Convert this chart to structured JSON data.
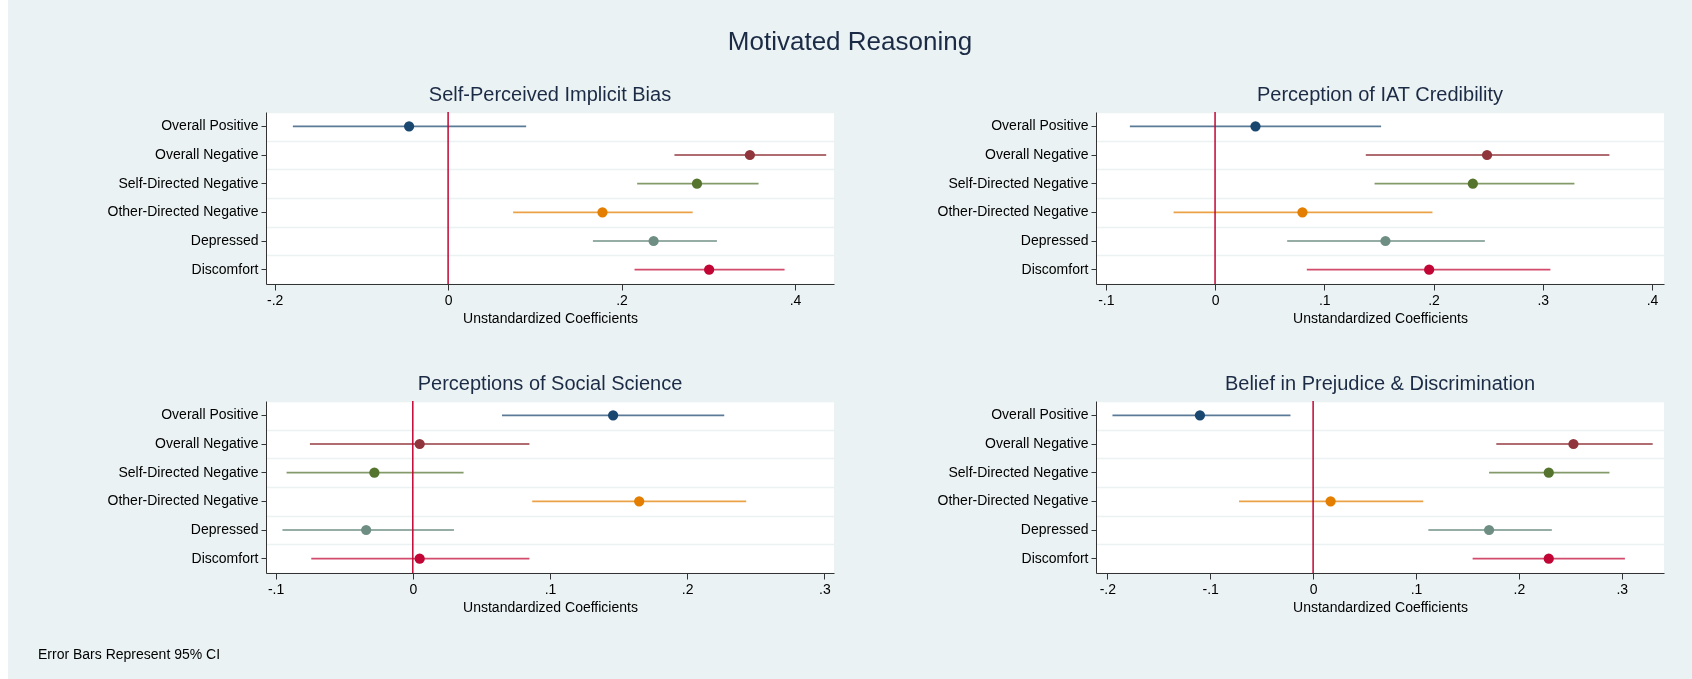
{
  "chart_data": [
    {
      "type": "scatter",
      "orientation": "horizontal",
      "title": "Self-Perceived Implicit Bias",
      "xlabel": "Unstandardized Coefficients",
      "annotations": [
        "Motivated Reasoning"
      ],
      "categories": [
        "Overall Positive",
        "Overall Negative",
        "Self-Directed Negative",
        "Other-Directed Negative",
        "Depressed",
        "Discomfort"
      ],
      "values": [
        -0.045,
        0.348,
        0.287,
        0.178,
        0.237,
        0.301
      ],
      "errors": [
        [
          -0.179,
          0.09
        ],
        [
          0.261,
          0.436
        ],
        [
          0.218,
          0.358
        ],
        [
          0.075,
          0.282
        ],
        [
          0.167,
          0.31
        ],
        [
          0.215,
          0.388
        ]
      ],
      "colors": [
        "#1a476f",
        "#90353b",
        "#55752f",
        "#e37e00",
        "#6e8e84",
        "#c10534"
      ],
      "xlim": [
        -0.21,
        0.445
      ],
      "xticks": [
        {
          "value": -0.2,
          "label": "-.2"
        },
        {
          "value": 0,
          "label": "0"
        },
        {
          "value": 0.2,
          "label": ".2"
        },
        {
          "value": 0.4,
          "label": ".4"
        }
      ],
      "ref_lines": [
        {
          "axis": "x",
          "value": 0,
          "color": "#c10534"
        }
      ],
      "grid": "y",
      "marker": "circle"
    },
    {
      "type": "scatter",
      "orientation": "horizontal",
      "title": "Perception of IAT Credibility",
      "xlabel": "Unstandardized Coefficients",
      "categories": [
        "Overall Positive",
        "Overall Negative",
        "Self-Directed Negative",
        "Other-Directed Negative",
        "Depressed",
        "Discomfort"
      ],
      "values": [
        0.037,
        0.249,
        0.236,
        0.08,
        0.156,
        0.196
      ],
      "errors": [
        [
          -0.078,
          0.152
        ],
        [
          0.138,
          0.361
        ],
        [
          0.146,
          0.329
        ],
        [
          -0.038,
          0.199
        ],
        [
          0.066,
          0.247
        ],
        [
          0.084,
          0.307
        ]
      ],
      "colors": [
        "#1a476f",
        "#90353b",
        "#55752f",
        "#e37e00",
        "#6e8e84",
        "#c10534"
      ],
      "xlim": [
        -0.109,
        0.411
      ],
      "xticks": [
        {
          "value": -0.1,
          "label": "-.1"
        },
        {
          "value": 0,
          "label": "0"
        },
        {
          "value": 0.1,
          "label": ".1"
        },
        {
          "value": 0.2,
          "label": ".2"
        },
        {
          "value": 0.3,
          "label": ".3"
        },
        {
          "value": 0.4,
          "label": ".4"
        }
      ],
      "ref_lines": [
        {
          "axis": "x",
          "value": 0,
          "color": "#c10534"
        }
      ],
      "grid": "y",
      "marker": "circle"
    },
    {
      "type": "scatter",
      "orientation": "horizontal",
      "title": "Perceptions of Social Science",
      "xlabel": "Unstandardized Coefficients",
      "annotations": [
        "Error Bars Represent 95% CI"
      ],
      "categories": [
        "Overall Positive",
        "Overall Negative",
        "Self-Directed Negative",
        "Other-Directed Negative",
        "Depressed",
        "Discomfort"
      ],
      "values": [
        0.146,
        0.005,
        -0.028,
        0.165,
        -0.034,
        0.005
      ],
      "errors": [
        [
          0.065,
          0.227
        ],
        [
          -0.075,
          0.085
        ],
        [
          -0.092,
          0.037
        ],
        [
          0.087,
          0.243
        ],
        [
          -0.095,
          0.03
        ],
        [
          -0.074,
          0.085
        ]
      ],
      "colors": [
        "#1a476f",
        "#90353b",
        "#55752f",
        "#e37e00",
        "#6e8e84",
        "#c10534"
      ],
      "xlim": [
        -0.107,
        0.307
      ],
      "xticks": [
        {
          "value": -0.1,
          "label": "-.1"
        },
        {
          "value": 0,
          "label": "0"
        },
        {
          "value": 0.1,
          "label": ".1"
        },
        {
          "value": 0.2,
          "label": ".2"
        },
        {
          "value": 0.3,
          "label": ".3"
        }
      ],
      "ref_lines": [
        {
          "axis": "x",
          "value": 0,
          "color": "#c10534"
        }
      ],
      "grid": "y",
      "marker": "circle"
    },
    {
      "type": "scatter",
      "orientation": "horizontal",
      "title": "Belief in Prejudice & Discrimination",
      "xlabel": "Unstandardized Coefficients",
      "categories": [
        "Overall Positive",
        "Overall Negative",
        "Self-Directed Negative",
        "Other-Directed Negative",
        "Depressed",
        "Discomfort"
      ],
      "values": [
        -0.11,
        0.253,
        0.229,
        0.017,
        0.171,
        0.229
      ],
      "errors": [
        [
          -0.195,
          -0.022
        ],
        [
          0.178,
          0.33
        ],
        [
          0.171,
          0.288
        ],
        [
          -0.072,
          0.107
        ],
        [
          0.112,
          0.232
        ],
        [
          0.155,
          0.303
        ]
      ],
      "colors": [
        "#1a476f",
        "#90353b",
        "#55752f",
        "#e37e00",
        "#6e8e84",
        "#c10534"
      ],
      "xlim": [
        -0.211,
        0.341
      ],
      "xticks": [
        {
          "value": -0.2,
          "label": "-.2"
        },
        {
          "value": -0.1,
          "label": "-.1"
        },
        {
          "value": 0,
          "label": "0"
        },
        {
          "value": 0.1,
          "label": ".1"
        },
        {
          "value": 0.2,
          "label": ".2"
        },
        {
          "value": 0.3,
          "label": ".3"
        }
      ],
      "ref_lines": [
        {
          "axis": "x",
          "value": 0,
          "color": "#c10534"
        }
      ],
      "grid": "y",
      "marker": "circle"
    }
  ]
}
